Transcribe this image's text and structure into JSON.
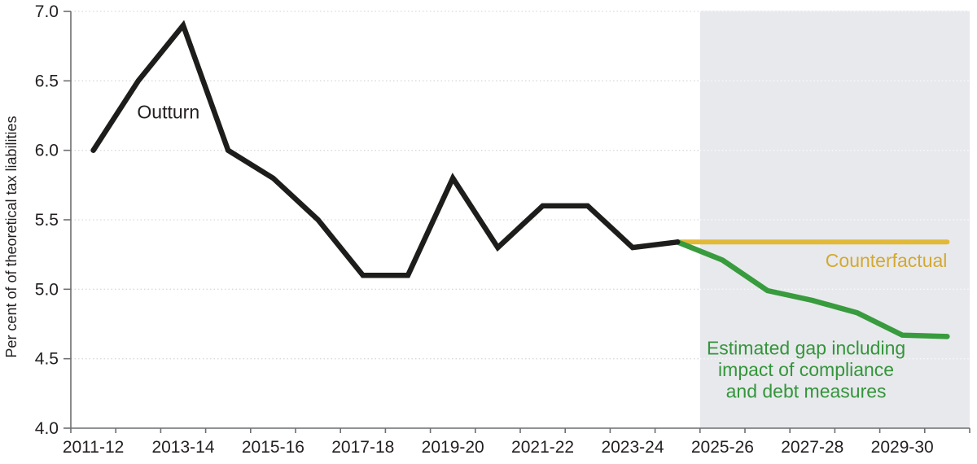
{
  "chart_data": {
    "type": "line",
    "title": "",
    "xlabel": "",
    "ylabel": "Per cent of of theoretical tax liabilities",
    "ylim": [
      4.0,
      7.0
    ],
    "ytick_step": 0.5,
    "ytick_labels": [
      "4.0",
      "4.5",
      "5.0",
      "5.5",
      "6.0",
      "6.5",
      "7.0"
    ],
    "categories": [
      "2011-12",
      "2012-13",
      "2013-14",
      "2014-15",
      "2015-16",
      "2016-17",
      "2017-18",
      "2018-19",
      "2019-20",
      "2020-21",
      "2021-22",
      "2022-23",
      "2023-24",
      "2024-25",
      "2025-26",
      "2026-27",
      "2027-28",
      "2028-29",
      "2029-30",
      "2030-31"
    ],
    "xtick_label_indices": [
      0,
      2,
      4,
      6,
      8,
      10,
      12,
      14,
      16,
      18
    ],
    "grid": {
      "horizontal": true,
      "style": "dotted",
      "color": "#d9d9d9",
      "color_on_shading": "#fafafa"
    },
    "axis_color": "#6d6e71",
    "tick_text_color": "#231f20",
    "legend_position": "none",
    "forecast_shading": {
      "start_index": 14,
      "color": "#e8e9ed"
    },
    "series": [
      {
        "name": "Outturn",
        "color": "#1d1d1b",
        "width": 6.5,
        "start_index": 0,
        "values": [
          6.0,
          6.5,
          6.9,
          6.0,
          5.8,
          5.5,
          5.1,
          5.1,
          5.8,
          5.3,
          5.6,
          5.6,
          5.3,
          5.34
        ]
      },
      {
        "name": "Counterfactual",
        "color": "#e2b937",
        "width": 6,
        "start_index": 13,
        "values": [
          5.34,
          5.34,
          5.34,
          5.34,
          5.34,
          5.34,
          5.34
        ]
      },
      {
        "name": "Estimated gap including impact of compliance and debt measures",
        "color": "#389b3e",
        "width": 6.5,
        "start_index": 13,
        "values": [
          5.34,
          5.21,
          4.99,
          4.92,
          4.83,
          4.67,
          4.66
        ]
      }
    ],
    "annotations": [
      {
        "id": "outturn-label",
        "text": "Outturn",
        "color": "#231f20",
        "x_index": 1.67,
        "value": 6.23,
        "anchor": "middle"
      },
      {
        "id": "counterfactual-label",
        "text": "Counterfactual",
        "color": "#d3a92f",
        "x_index": 19.0,
        "value": 5.16,
        "anchor": "end"
      },
      {
        "id": "gap-label-line-1",
        "text": "Estimated gap including",
        "color": "#33953a",
        "x_index": 15.86,
        "value": 4.53,
        "anchor": "middle"
      },
      {
        "id": "gap-label-line-2",
        "text": "impact of compliance",
        "color": "#33953a",
        "x_index": 15.86,
        "value": 4.375,
        "anchor": "middle"
      },
      {
        "id": "gap-label-line-3",
        "text": "and debt measures",
        "color": "#33953a",
        "x_index": 15.86,
        "value": 4.22,
        "anchor": "middle"
      }
    ]
  }
}
